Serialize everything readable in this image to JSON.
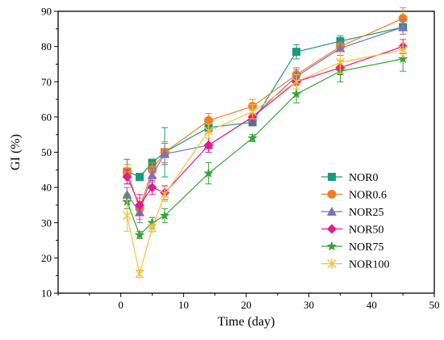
{
  "chart_data": {
    "type": "line",
    "xlabel": "Time (day)",
    "ylabel": "GI (%)",
    "xlim": [
      -10,
      50
    ],
    "ylim": [
      10,
      90
    ],
    "xticks": [
      0,
      10,
      20,
      30,
      40,
      50
    ],
    "yticks": [
      10,
      20,
      30,
      40,
      50,
      60,
      70,
      80,
      90
    ],
    "grid": false,
    "legend_position": "center-right",
    "x": [
      1,
      3,
      5,
      7,
      14,
      21,
      28,
      35,
      45
    ],
    "series": [
      {
        "name": "NOR0",
        "color": "#1a9a7a",
        "marker": "square",
        "values": [
          44.5,
          43,
          47,
          50,
          57,
          58.5,
          78.5,
          81.5,
          85.5
        ],
        "errors": [
          3.5,
          1,
          1,
          7,
          1.5,
          1,
          2,
          1.5,
          1
        ]
      },
      {
        "name": "NOR0.6",
        "color": "#f07c25",
        "marker": "circle",
        "values": [
          44.5,
          34,
          45,
          50,
          59,
          63,
          72,
          80,
          88
        ],
        "errors": [
          2,
          3,
          2,
          3,
          2,
          2,
          2,
          1.5,
          3
        ]
      },
      {
        "name": "NOR25",
        "color": "#7b72b8",
        "marker": "triangle",
        "values": [
          38,
          33,
          43.5,
          49.5,
          52,
          60,
          71.5,
          79.5,
          85.5
        ],
        "errors": [
          2,
          3,
          2,
          3,
          2,
          2,
          2,
          2,
          2
        ]
      },
      {
        "name": "NOR50",
        "color": "#e8198b",
        "marker": "diamond",
        "values": [
          43,
          35,
          40,
          38.5,
          52,
          60,
          70,
          74,
          80
        ],
        "errors": [
          2,
          3,
          2,
          2,
          2,
          2,
          2,
          2,
          2
        ]
      },
      {
        "name": "NOR75",
        "color": "#3aa335",
        "marker": "star",
        "values": [
          36,
          26.5,
          30,
          32,
          44,
          54,
          66.5,
          73,
          76.5
        ],
        "errors": [
          2,
          1,
          1.5,
          2,
          3,
          1,
          2.5,
          3,
          3.5
        ]
      },
      {
        "name": "NOR100",
        "color": "#f5c040",
        "marker": "x",
        "values": [
          32,
          15.5,
          28.5,
          38,
          56,
          61.5,
          70,
          75.5,
          79
        ],
        "errors": [
          4.5,
          1,
          1,
          2,
          2,
          2,
          2,
          3,
          2
        ]
      }
    ]
  }
}
